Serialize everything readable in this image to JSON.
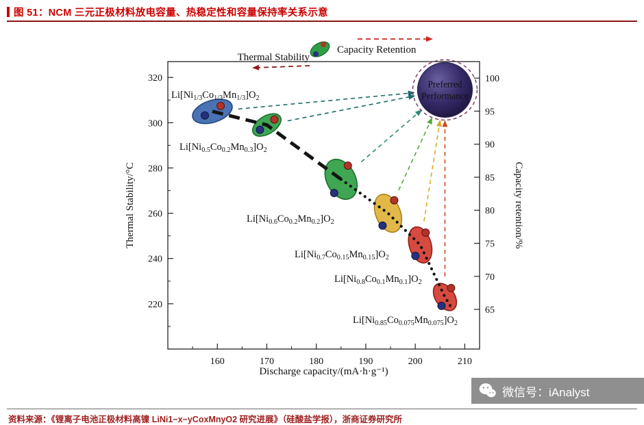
{
  "header": {
    "caption": "图 51：NCM 三元正极材料放电容量、热稳定性和容量保持率关系示意"
  },
  "chart_data": {
    "type": "scatter",
    "xlabel": "Discharge capacity/(mA·h·g⁻¹)",
    "ylabel_left": "Thermal Stability/°C",
    "ylabel_right": "Capacity retention/%",
    "x_range": [
      150,
      213
    ],
    "y_left_range": [
      200,
      327
    ],
    "y_right_range": [
      59,
      102.5
    ],
    "x_ticks": [
      160,
      170,
      180,
      190,
      200,
      210
    ],
    "y_left_ticks": [
      220,
      240,
      260,
      280,
      300,
      320
    ],
    "y_right_ticks": [
      65,
      70,
      75,
      80,
      85,
      90,
      95,
      100
    ],
    "grid": false,
    "legend": {
      "thermal_label": "Thermal Stability",
      "thermal_arrow_color": "#8b1a1a",
      "capacity_label": "Capacity Retention",
      "capacity_arrow_color": "#cc2420"
    },
    "preferred": {
      "line1": "Preferred",
      "line2": "Performance",
      "x": 206,
      "thermal": 314.5,
      "ring_color": "#7c2d66"
    },
    "trend_color": "#141414",
    "dot_colors": {
      "red": "#b2332a",
      "blue": "#27317e"
    },
    "materials": [
      {
        "label": "Li[Ni~1/3~Co~1/3~Mn~1/3~]O~2~",
        "x": 159,
        "thermal": 305,
        "retention": 95,
        "color": "#3a67ae",
        "edge": "#24477e",
        "arrow_color": "#1a6b68"
      },
      {
        "label": "Li[Ni~0.5~Co~0.2~Mn~0.3~]O~2~",
        "x": 170,
        "thermal": 299,
        "retention": 93,
        "color": "#2f9e44",
        "edge": "#1b6e2d",
        "arrow_color": "#1a6b68"
      },
      {
        "label": "Li[Ni~0.6~Co~0.2~Mn~0.2~]O~2~",
        "x": 185,
        "thermal": 275,
        "retention": 84.5,
        "color": "#2f9e44",
        "edge": "#1b6e2d",
        "arrow_color": "#2a8a72"
      },
      {
        "label": "Li[Ni~0.7~Co~0.15~Mn~0.15~]O~2~",
        "x": 194.5,
        "thermal": 260,
        "retention": 79.5,
        "color": "#e0b33a",
        "edge": "#a8801f",
        "arrow_color": "#52a83e"
      },
      {
        "label": "Li[Ni~0.8~Co~0.1~Mn~0.1~]O~2~",
        "x": 201,
        "thermal": 246,
        "retention": 75,
        "color": "#d23b2f",
        "edge": "#8f1f16",
        "arrow_color": "#d8a825"
      },
      {
        "label": "Li[Ni~0.85~Co~0.075~Mn~0.075~]O~2~",
        "x": 206,
        "thermal": 223,
        "retention": 67,
        "color": "#d23b2f",
        "edge": "#8f1f16",
        "arrow_color": "#d2491e"
      }
    ]
  },
  "footer": {
    "source": "资料来源：《锂离子电池正极材料高镍 LiNi1−x−yCoxMnyO2 研究进展》（硅酸盐学报），浙商证券研究所",
    "watermark": "微信号：iAnalyst"
  }
}
